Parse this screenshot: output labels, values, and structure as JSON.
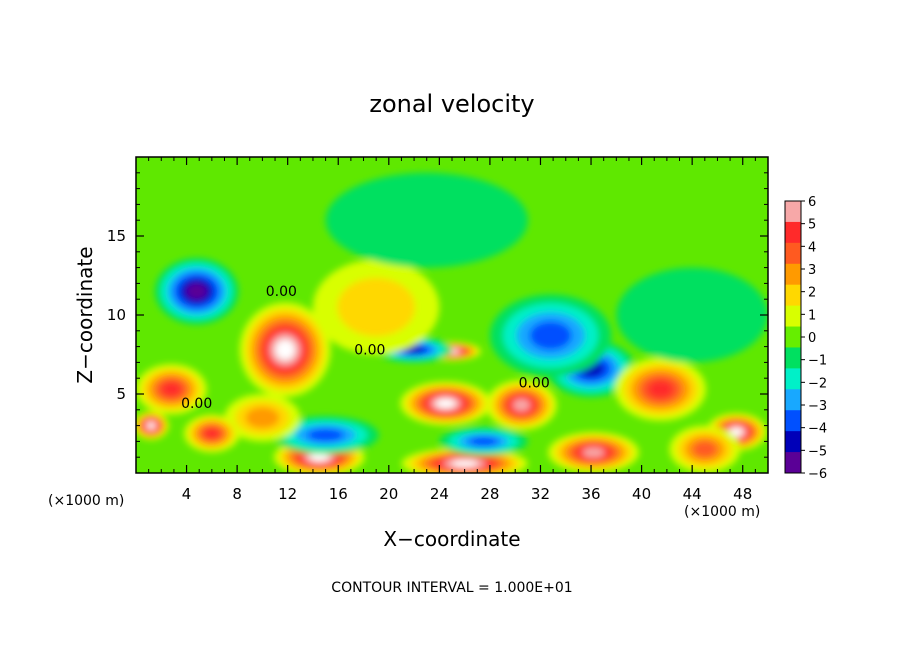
{
  "chart_data": {
    "type": "heatmap",
    "title": "zonal velocity",
    "xlabel": "X−coordinate",
    "ylabel": "Z−coordinate",
    "x_unit_label": "(×1000 m)",
    "z_unit_label": "(×1000 m)",
    "xlim": [
      0,
      50
    ],
    "ylim": [
      0,
      20
    ],
    "x_ticks": [
      4,
      8,
      12,
      16,
      20,
      24,
      28,
      32,
      36,
      40,
      44,
      48
    ],
    "y_ticks": [
      5,
      10,
      15
    ],
    "footer": "CONTOUR INTERVAL = 1.000E+01",
    "contour_labels": [
      {
        "text": "0.00",
        "x": 11.5,
        "z": 11.2
      },
      {
        "text": "0.00",
        "x": 18.5,
        "z": 7.5
      },
      {
        "text": "0.00",
        "x": 4.8,
        "z": 4.1
      },
      {
        "text": "0.00",
        "x": 31.5,
        "z": 5.4
      }
    ],
    "colorbar": {
      "min": -6,
      "max": 6,
      "tick_labels": [
        "6",
        "5",
        "4",
        "3",
        "2",
        "1",
        "0",
        "−1",
        "−2",
        "−3",
        "−4",
        "−5",
        "−6"
      ],
      "colors": [
        "#f7a8a8",
        "#ff2a2a",
        "#ff5a20",
        "#ff9a00",
        "#ffd800",
        "#d8ff00",
        "#66ee00",
        "#00e060",
        "#00f0c8",
        "#18a8ff",
        "#0050ff",
        "#0000b8",
        "#5a0096"
      ]
    },
    "features": [
      {
        "x": 4.8,
        "z": 11.5,
        "value": -6,
        "rx": 3.3,
        "rz": 2.1
      },
      {
        "x": 11.8,
        "z": 7.8,
        "value": 7,
        "rx": 3.6,
        "rz": 3.0
      },
      {
        "x": 24.5,
        "z": 4.4,
        "value": 7,
        "rx": 3.6,
        "rz": 1.4
      },
      {
        "x": 25.0,
        "z": 7.7,
        "value": 7,
        "rx": 2.3,
        "rz": 0.6
      },
      {
        "x": 22.0,
        "z": 7.8,
        "value": -5,
        "rx": 3.0,
        "rz": 0.8
      },
      {
        "x": 30.5,
        "z": 4.3,
        "value": 6,
        "rx": 2.8,
        "rz": 1.6
      },
      {
        "x": 36.5,
        "z": 6.0,
        "value": 7,
        "rx": 1.5,
        "rz": 0.7
      },
      {
        "x": 36.0,
        "z": 6.6,
        "value": -5,
        "rx": 3.5,
        "rz": 1.8
      },
      {
        "x": 42.3,
        "z": 5.0,
        "value": 7,
        "rx": 1.6,
        "rz": 1.0
      },
      {
        "x": 41.5,
        "z": 5.3,
        "value": 5,
        "rx": 3.6,
        "rz": 2.0
      },
      {
        "x": 1.2,
        "z": 3.0,
        "value": 7,
        "rx": 1.4,
        "rz": 0.9
      },
      {
        "x": 2.8,
        "z": 5.3,
        "value": 5,
        "rx": 2.8,
        "rz": 1.6
      },
      {
        "x": 14.5,
        "z": 1.0,
        "value": 7,
        "rx": 3.6,
        "rz": 1.2
      },
      {
        "x": 15.0,
        "z": 2.4,
        "value": -4,
        "rx": 4.2,
        "rz": 1.2
      },
      {
        "x": 26.0,
        "z": 0.6,
        "value": 7,
        "rx": 5.0,
        "rz": 1.0
      },
      {
        "x": 27.5,
        "z": 2.0,
        "value": -4,
        "rx": 3.5,
        "rz": 0.9
      },
      {
        "x": 36.2,
        "z": 1.3,
        "value": 6,
        "rx": 3.6,
        "rz": 1.3
      },
      {
        "x": 32.8,
        "z": 8.7,
        "value": -4,
        "rx": 4.8,
        "rz": 2.6
      },
      {
        "x": 19.0,
        "z": 10.5,
        "value": 2,
        "rx": 5.0,
        "rz": 3.0
      },
      {
        "x": 47.5,
        "z": 2.6,
        "value": 7,
        "rx": 2.4,
        "rz": 1.2
      },
      {
        "x": 45.0,
        "z": 1.5,
        "value": 4,
        "rx": 2.8,
        "rz": 1.5
      },
      {
        "x": 23.0,
        "z": 16.0,
        "value": -1,
        "rx": 8.0,
        "rz": 3.0
      },
      {
        "x": 10.0,
        "z": 3.5,
        "value": 3,
        "rx": 3.0,
        "rz": 1.5
      },
      {
        "x": 6.0,
        "z": 2.5,
        "value": 5,
        "rx": 2.2,
        "rz": 1.2
      },
      {
        "x": 44.0,
        "z": 10.0,
        "value": -1,
        "rx": 6.0,
        "rz": 3.0
      }
    ]
  }
}
